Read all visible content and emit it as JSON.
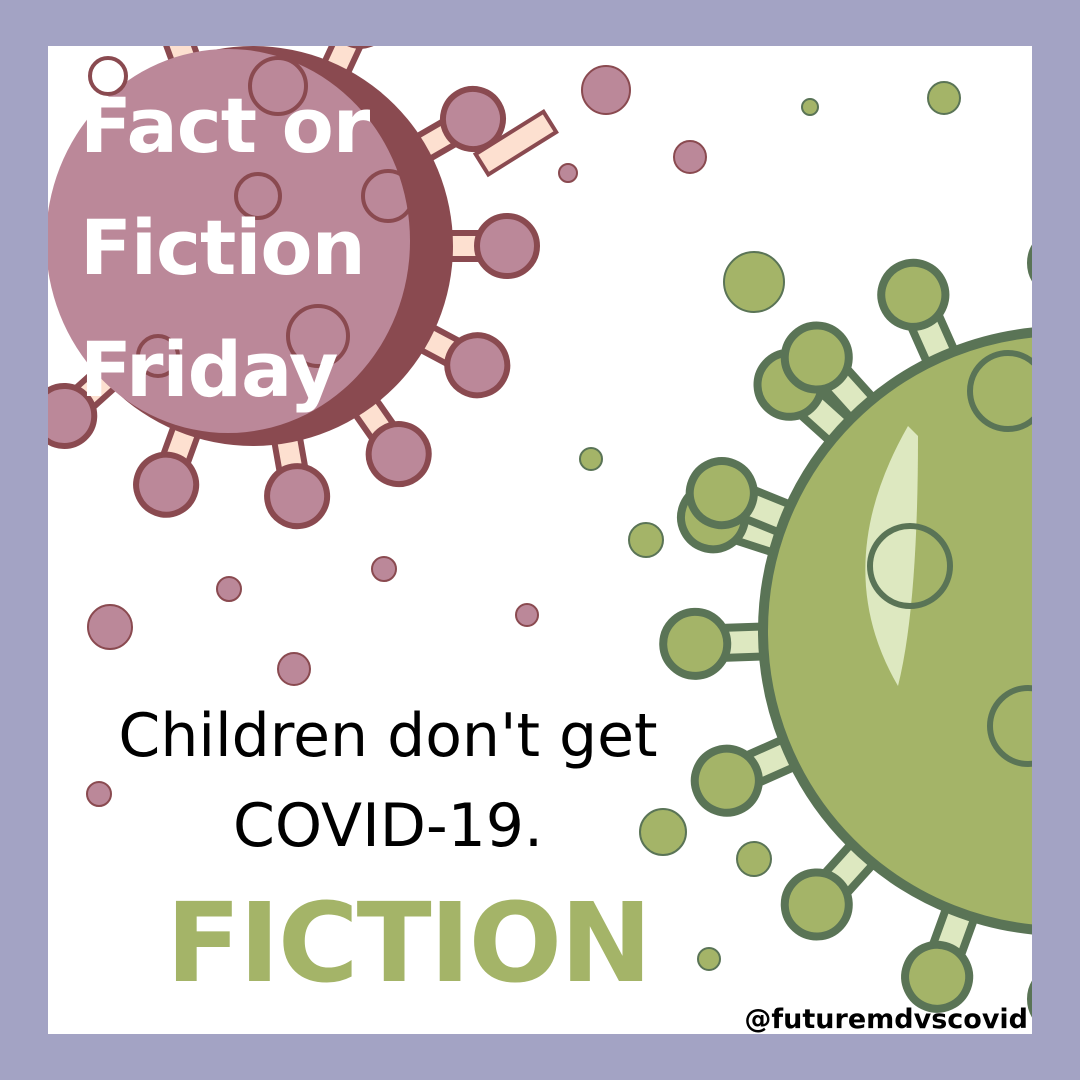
{
  "title": {
    "lines": [
      "Fact or",
      "Fiction",
      "Friday"
    ]
  },
  "statement": {
    "lines": [
      "Children don't get",
      "COVID-19."
    ]
  },
  "verdict": "FICTION",
  "handle": "@futuremdvscovid",
  "colors": {
    "border": "#a3a3c4",
    "pink_virus_body": "#bb8899",
    "pink_virus_shade": "#8a4a50",
    "pink_spike_stem": "#fde0d0",
    "green_virus_body": "#a4b468",
    "green_virus_outline": "#5a7456",
    "green_spike_stem": "#dde8c0",
    "verdict_text": "#a4b468"
  },
  "icons": [
    "pink-virus-icon",
    "green-virus-icon"
  ]
}
